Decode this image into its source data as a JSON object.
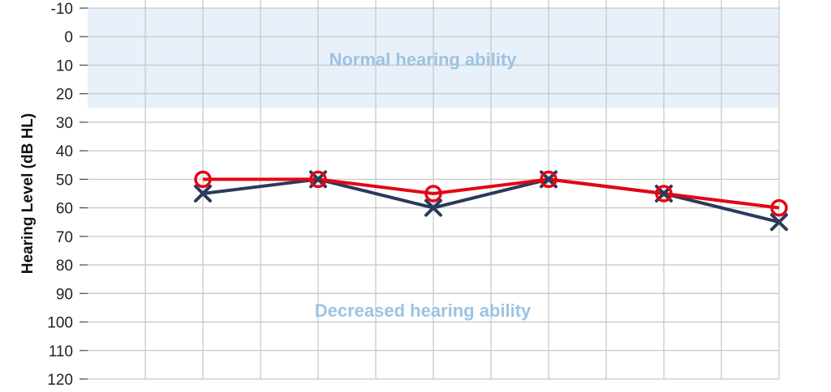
{
  "chart_data": {
    "type": "line",
    "ylabel": "Hearing Level (dB HL)",
    "yticks": [
      "-10",
      "0",
      "10",
      "20",
      "30",
      "40",
      "50",
      "60",
      "70",
      "80",
      "90",
      "100",
      "110",
      "120"
    ],
    "ylim": [
      -10,
      120
    ],
    "y_inverted": true,
    "x_columns": 12,
    "x": [
      1,
      2,
      3,
      4,
      5,
      6
    ],
    "series": [
      {
        "marker": "circle",
        "color": "#e30613",
        "values": [
          50,
          50,
          55,
          50,
          55,
          60
        ]
      },
      {
        "marker": "cross",
        "color": "#2b3a5c",
        "values": [
          55,
          50,
          60,
          50,
          55,
          65
        ]
      }
    ],
    "zones": [
      {
        "label": "Normal hearing ability",
        "from": -10,
        "to": 25,
        "fill": "#e8f1fa",
        "text_color": "#9cc3e2"
      },
      {
        "label": "Decreased hearing ability",
        "from": 25,
        "to": 120,
        "fill": "#ffffff",
        "text_color": "#9cc3e2"
      }
    ],
    "grid": true
  }
}
